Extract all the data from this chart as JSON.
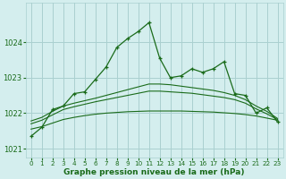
{
  "xlabel": "Graphe pression niveau de la mer (hPa)",
  "bg_color": "#d4eeee",
  "grid_color": "#aad0d0",
  "line_color": "#1a6b1a",
  "ylim": [
    1020.75,
    1025.1
  ],
  "xlim": [
    -0.5,
    23.5
  ],
  "yticks": [
    1021,
    1022,
    1023,
    1024
  ],
  "xticks": [
    0,
    1,
    2,
    3,
    4,
    5,
    6,
    7,
    8,
    9,
    10,
    11,
    12,
    13,
    14,
    15,
    16,
    17,
    18,
    19,
    20,
    21,
    22,
    23
  ],
  "main_x": [
    0,
    1,
    2,
    3,
    4,
    5,
    6,
    7,
    8,
    9,
    10,
    11,
    12,
    13,
    14,
    15,
    16,
    17,
    18,
    19,
    20,
    21,
    22,
    23
  ],
  "main_y": [
    1021.35,
    1021.6,
    1022.1,
    1022.2,
    1022.55,
    1022.6,
    1022.95,
    1023.3,
    1023.85,
    1024.1,
    1024.3,
    1024.55,
    1023.55,
    1023.0,
    1023.05,
    1023.25,
    1023.15,
    1023.25,
    1023.45,
    1022.55,
    1022.5,
    1022.0,
    1022.15,
    1021.75
  ],
  "flat_x": [
    0,
    1,
    2,
    3,
    4,
    5,
    6,
    7,
    8,
    9,
    10,
    11,
    12,
    13,
    14,
    15,
    16,
    17,
    18,
    19,
    20,
    21,
    22,
    23
  ],
  "flat_y": [
    1021.55,
    1021.62,
    1021.72,
    1021.82,
    1021.88,
    1021.93,
    1021.97,
    1022.0,
    1022.02,
    1022.04,
    1022.05,
    1022.06,
    1022.06,
    1022.06,
    1022.06,
    1022.05,
    1022.04,
    1022.03,
    1022.01,
    1021.99,
    1021.96,
    1021.92,
    1021.86,
    1021.8
  ],
  "mid1_x": [
    0,
    1,
    2,
    3,
    4,
    5,
    6,
    7,
    8,
    9,
    10,
    11,
    12,
    13,
    14,
    15,
    16,
    17,
    18,
    19,
    20,
    21,
    22,
    23
  ],
  "mid1_y": [
    1021.7,
    1021.8,
    1021.95,
    1022.1,
    1022.18,
    1022.25,
    1022.32,
    1022.38,
    1022.44,
    1022.5,
    1022.56,
    1022.62,
    1022.62,
    1022.6,
    1022.58,
    1022.56,
    1022.52,
    1022.48,
    1022.44,
    1022.38,
    1022.28,
    1022.12,
    1021.98,
    1021.82
  ],
  "mid2_x": [
    0,
    1,
    2,
    3,
    4,
    5,
    6,
    7,
    8,
    9,
    10,
    11,
    12,
    13,
    14,
    15,
    16,
    17,
    18,
    19,
    20,
    21,
    22,
    23
  ],
  "mid2_y": [
    1021.78,
    1021.88,
    1022.05,
    1022.2,
    1022.28,
    1022.35,
    1022.42,
    1022.5,
    1022.58,
    1022.66,
    1022.74,
    1022.82,
    1022.82,
    1022.8,
    1022.76,
    1022.72,
    1022.68,
    1022.64,
    1022.58,
    1022.5,
    1022.38,
    1022.2,
    1022.05,
    1021.85
  ]
}
